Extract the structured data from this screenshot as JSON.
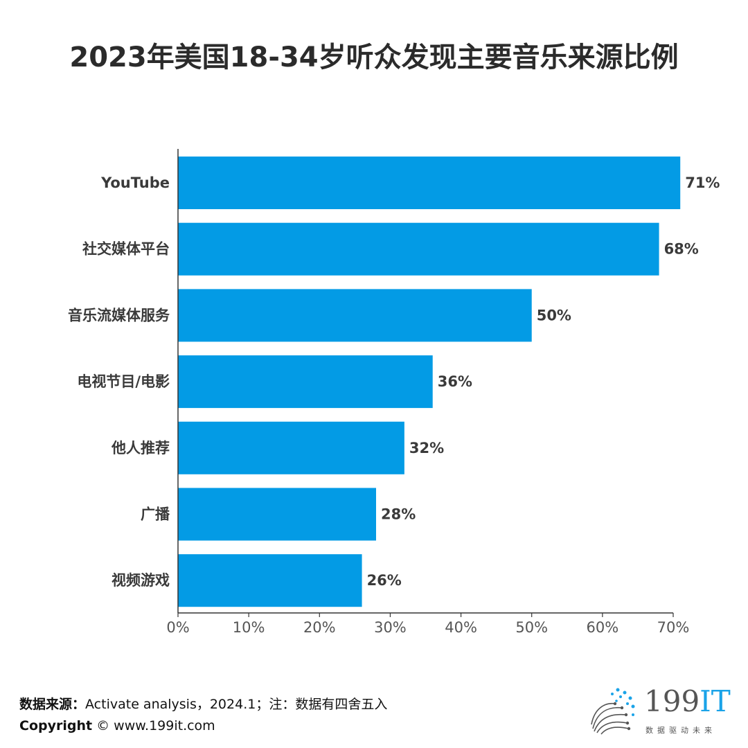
{
  "title": "2023年美国18-34岁听众发现主要音乐来源比例",
  "chart_data": {
    "type": "bar",
    "orientation": "horizontal",
    "categories": [
      "YouTube",
      "社交媒体平台",
      "音乐流媒体服务",
      "电视节目/电影",
      "他人推荐",
      "广播",
      "视频游戏"
    ],
    "values": [
      71,
      68,
      50,
      36,
      32,
      28,
      26
    ],
    "value_labels": [
      "71%",
      "68%",
      "50%",
      "36%",
      "32%",
      "28%",
      "26%"
    ],
    "xlim": [
      0,
      70
    ],
    "xticks": [
      "0%",
      "10%",
      "20%",
      "30%",
      "40%",
      "50%",
      "60%",
      "70%"
    ],
    "bar_color": "#039be5",
    "grid": false,
    "legend": "none"
  },
  "footer": {
    "source_label": "数据来源：",
    "source_text": "Activate analysis，2024.1；注：数据有四舍五入",
    "copyright_label": "Copyright",
    "copyright_text": " © www.199it.com"
  },
  "logo": {
    "number": "199",
    "suffix": "IT",
    "slogan": "数据驱动未来"
  }
}
